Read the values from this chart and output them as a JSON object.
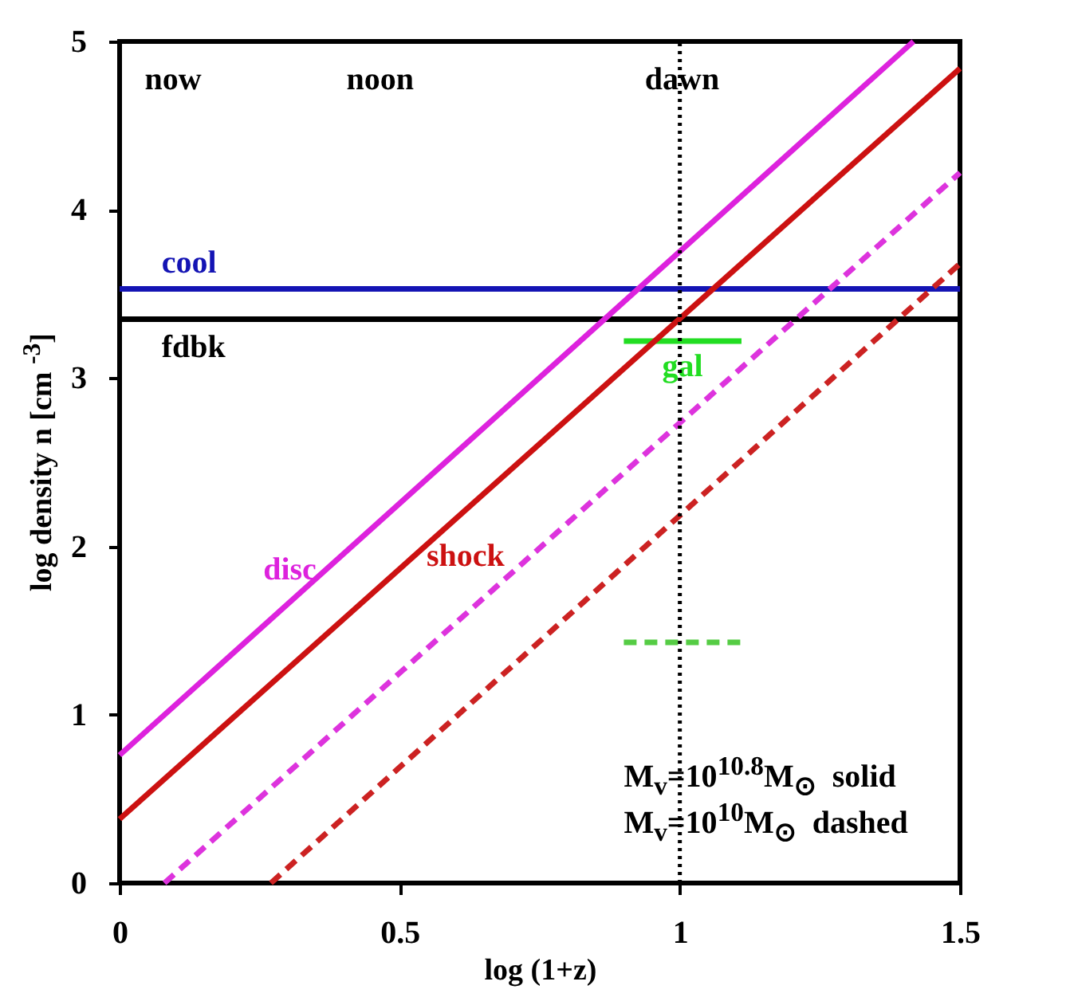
{
  "chart_data": {
    "type": "line",
    "xlabel": "log (1+z)",
    "ylabel": "log density n [cm $^{-3}$]",
    "xlim": [
      0,
      1.5
    ],
    "ylim": [
      0,
      5
    ],
    "xticks": [
      0,
      0.5,
      1,
      1.5
    ],
    "yticks": [
      0,
      1,
      2,
      3,
      4,
      5
    ],
    "grid": false,
    "marker": "none",
    "series": [
      {
        "name": "cool",
        "color": "#1414b4",
        "x": [
          0,
          1.5
        ],
        "values": [
          3.53,
          3.53
        ],
        "line_style": "solid"
      },
      {
        "name": "fdbk",
        "color": "#000000",
        "x": [
          0,
          1.5
        ],
        "values": [
          3.35,
          3.35
        ],
        "line_style": "solid"
      },
      {
        "name": "gal",
        "color": "#22dd22",
        "x": [
          0.9,
          1.11
        ],
        "values": [
          3.22,
          3.22
        ],
        "line_style": "solid"
      },
      {
        "color": "#55cc44",
        "x": [
          0.9,
          1.11
        ],
        "values": [
          1.43,
          1.43
        ],
        "line_style": "dashed"
      },
      {
        "name": "disc",
        "color": "#dd22dd",
        "x": [
          0,
          1.417
        ],
        "values": [
          0.76,
          5
        ],
        "line_style": "solid"
      },
      {
        "name": "shock",
        "color": "#cc1111",
        "x": [
          0,
          1.5
        ],
        "values": [
          0.38,
          4.84
        ],
        "line_style": "solid"
      },
      {
        "color": "#dd33dd",
        "x": [
          0.08,
          1.5
        ],
        "values": [
          0,
          4.22
        ],
        "line_style": "dashed"
      },
      {
        "color": "#cc2222",
        "x": [
          0.27,
          1.5
        ],
        "values": [
          0,
          3.68
        ],
        "line_style": "dashed"
      }
    ],
    "ref_lines": [
      {
        "axis": "x",
        "value": 1,
        "color": "#000000",
        "line_style": "dotted"
      }
    ],
    "annotations": [
      "now",
      "noon",
      "dawn",
      "M$_{v}$=10$^{10.8}$M$_{⊙}$  solid",
      "M$_{v}$=10$^{10}$M$_{⊙}$  dashed"
    ]
  }
}
